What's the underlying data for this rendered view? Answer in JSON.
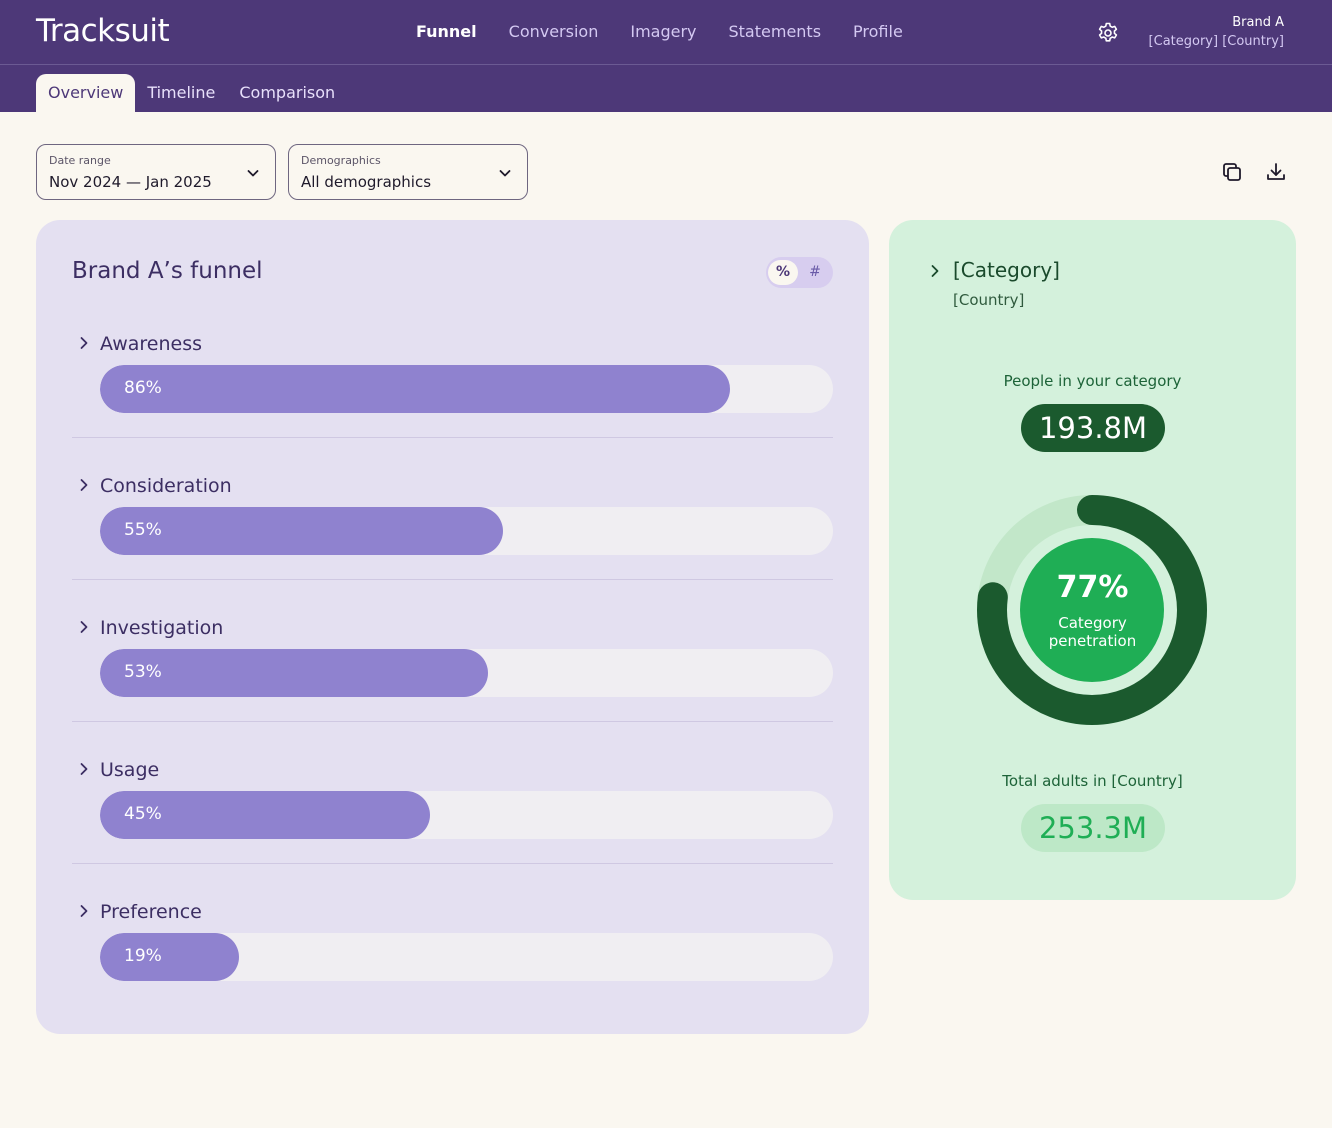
{
  "app": {
    "logo": "Tracksuit"
  },
  "nav": {
    "items": [
      {
        "label": "Funnel",
        "active": true
      },
      {
        "label": "Conversion"
      },
      {
        "label": "Imagery"
      },
      {
        "label": "Statements"
      },
      {
        "label": "Profile"
      }
    ]
  },
  "account": {
    "brand": "Brand A",
    "context": "[Category] [Country]",
    "settings_icon": "gear-icon"
  },
  "subtabs": [
    {
      "label": "Overview",
      "active": true
    },
    {
      "label": "Timeline"
    },
    {
      "label": "Comparison"
    }
  ],
  "filters": {
    "date_range": {
      "label": "Date range",
      "value": "Nov 2024 — Jan 2025"
    },
    "demographics": {
      "label": "Demographics",
      "value": "All demographics"
    }
  },
  "toolbar": {
    "copy_icon": "copy-icon",
    "download_icon": "download-icon"
  },
  "funnel": {
    "title": "Brand A’s funnel",
    "toggle": {
      "percent": "%",
      "number": "#",
      "selected": "percent"
    },
    "stages": [
      {
        "name": "Awareness",
        "value_label": "86%",
        "value": 86
      },
      {
        "name": "Consideration",
        "value_label": "55%",
        "value": 55
      },
      {
        "name": "Investigation",
        "value_label": "53%",
        "value": 53
      },
      {
        "name": "Usage",
        "value_label": "45%",
        "value": 45
      },
      {
        "name": "Preference",
        "value_label": "19%",
        "value": 19
      }
    ]
  },
  "category": {
    "title": "[Category]",
    "country": "[Country]",
    "people_label": "People in your category",
    "people_value": "193.8M",
    "penetration_label": "77%",
    "penetration_value": 77,
    "penetration_text": "Category penetration",
    "total_label": "Total adults in [Country]",
    "total_value": "253.3M"
  },
  "colors": {
    "header": "#4d3878",
    "funnel_bar": "#8f82cf",
    "funnel_card": "#e4e0f1",
    "category_card": "#d4f1dc",
    "donut_dark": "#1b5a2e",
    "donut_light": "#c2e7c9",
    "donut_center": "#1fae55"
  }
}
